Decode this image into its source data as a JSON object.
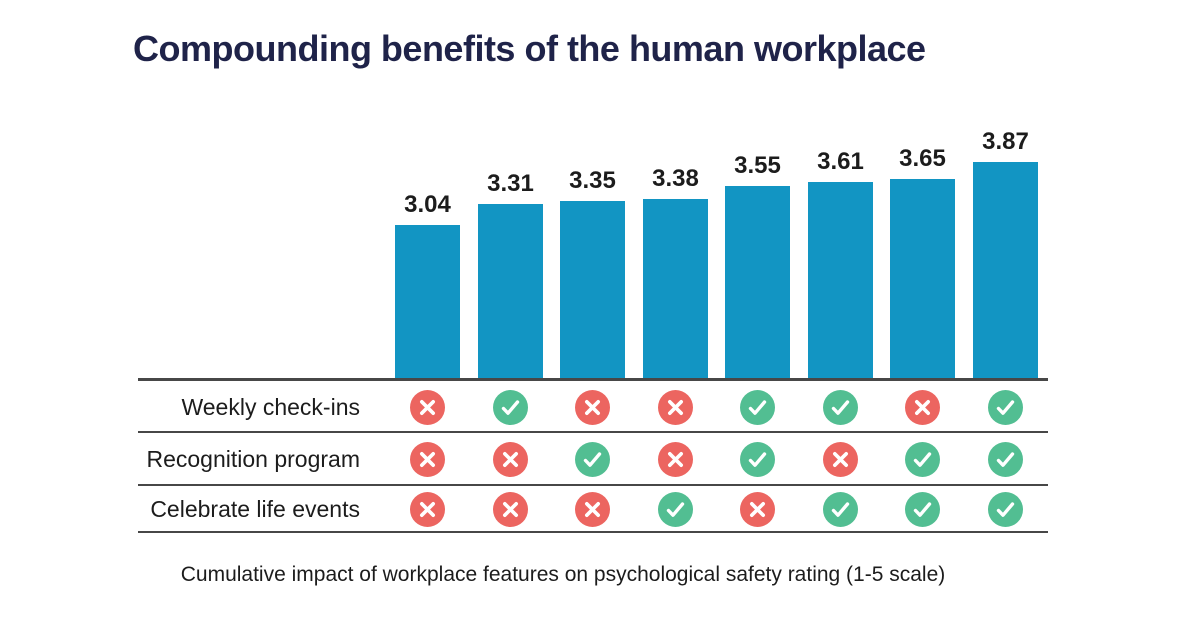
{
  "chart_data": {
    "type": "bar",
    "title": "Compounding benefits of the human workplace",
    "caption": "Cumulative impact of workplace features on psychological safety rating (1-5 scale)",
    "values": [
      3.04,
      3.31,
      3.35,
      3.38,
      3.55,
      3.61,
      3.65,
      3.87
    ],
    "value_labels": [
      "3.04",
      "3.31",
      "3.35",
      "3.38",
      "3.55",
      "3.61",
      "3.65",
      "3.87"
    ],
    "axis_min": 1,
    "axis_max": 5,
    "grid": false,
    "legend": "none",
    "features": [
      {
        "label": "Weekly check-ins",
        "enabled": [
          false,
          true,
          false,
          false,
          true,
          true,
          false,
          true
        ]
      },
      {
        "label": "Recognition program",
        "enabled": [
          false,
          false,
          true,
          false,
          true,
          false,
          true,
          true
        ]
      },
      {
        "label": "Celebrate life events",
        "enabled": [
          false,
          false,
          false,
          true,
          false,
          true,
          true,
          true
        ]
      }
    ],
    "icons": {
      "yes": "check-icon",
      "no": "x-icon"
    },
    "colors": {
      "bar": "#1295C3",
      "check": "#52BE92",
      "cross": "#EC6560",
      "title": "#1F2349",
      "text": "#1C1C1C",
      "line": "#474747"
    }
  }
}
